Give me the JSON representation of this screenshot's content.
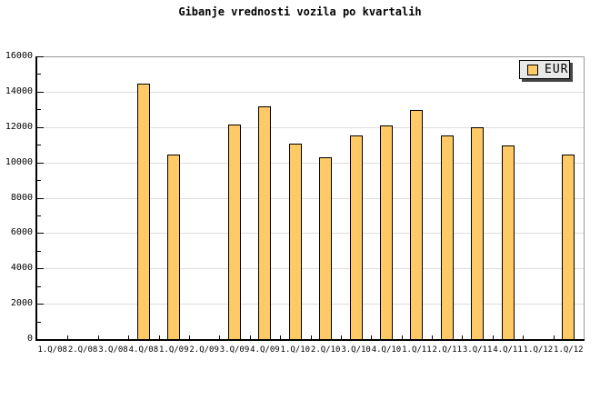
{
  "title": "Gibanje vrednosti vozila po kvartalih",
  "legend": {
    "label": "EUR"
  },
  "colors": {
    "bar_fill": "#FFC966",
    "bar_border": "#000000",
    "grid": "#DDDDDD",
    "axis": "#000000",
    "frame_light": "#9A9A9A",
    "legend_bg": "#E8E8E8",
    "legend_shadow": "#444444"
  },
  "chart_data": {
    "type": "bar",
    "title": "Gibanje vrednosti vozila po kvartalih",
    "categories": [
      "1.Q/08",
      "2.Q/08",
      "3.Q/08",
      "4.Q/08",
      "1.Q/09",
      "2.Q/09",
      "3.Q/09",
      "4.Q/09",
      "1.Q/10",
      "2.Q/10",
      "3.Q/10",
      "4.Q/10",
      "1.Q/11",
      "2.Q/11",
      "3.Q/11",
      "4.Q/11",
      "1.Q/12",
      "1.Q/12"
    ],
    "series": [
      {
        "name": "EUR",
        "values": [
          null,
          null,
          null,
          14450,
          10450,
          null,
          12150,
          13150,
          11050,
          10300,
          11500,
          12100,
          12950,
          11500,
          12000,
          10950,
          null,
          10450
        ]
      }
    ],
    "ylim": [
      0,
      16000
    ],
    "yticks": [
      0,
      2000,
      4000,
      6000,
      8000,
      10000,
      12000,
      14000,
      16000
    ],
    "minor_ytick_step": 1000,
    "xlabel": "",
    "ylabel": "",
    "grid": "horizontal-major",
    "legend_position": "top-right"
  }
}
